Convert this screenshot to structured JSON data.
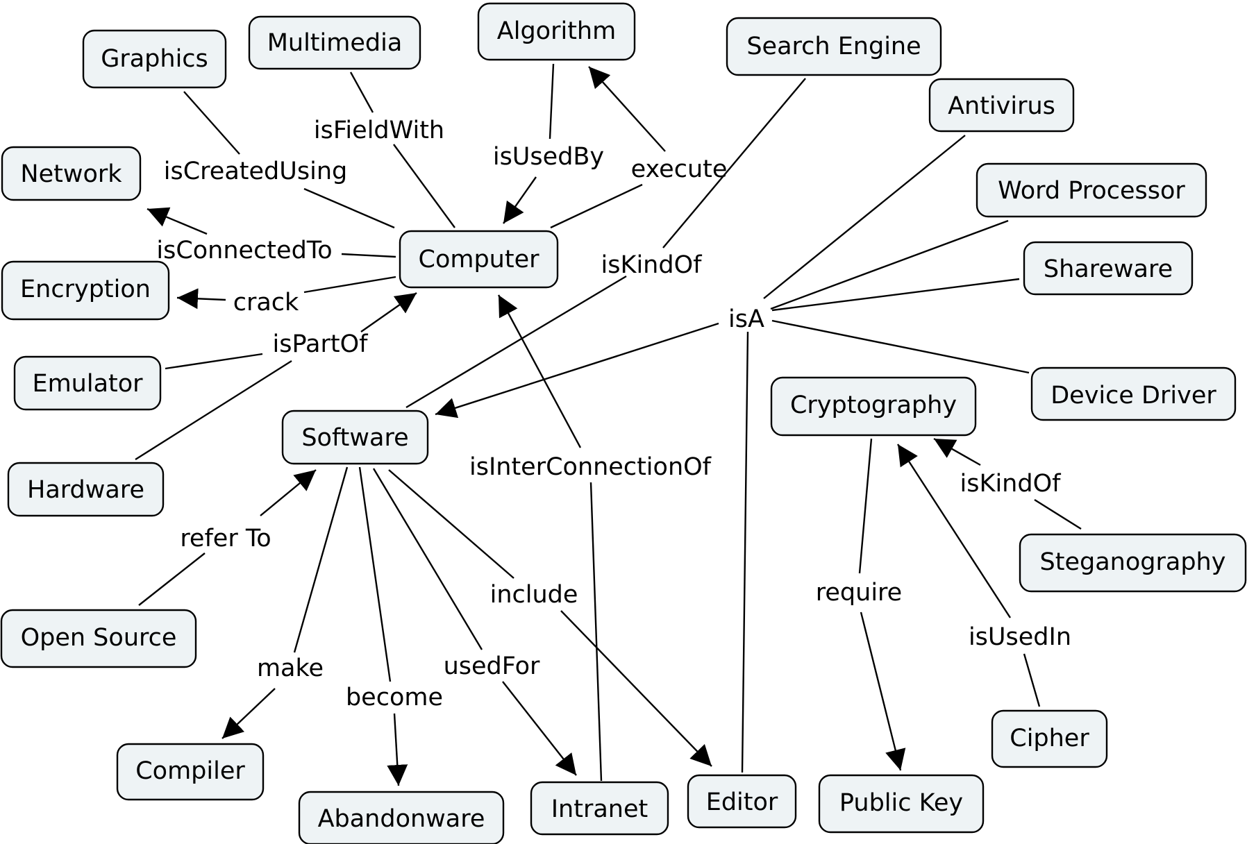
{
  "concepts": {
    "computer": "Computer",
    "graphics": "Graphics",
    "multimedia": "Multimedia",
    "algorithm": "Algorithm",
    "search_engine": "Search Engine",
    "antivirus": "Antivirus",
    "word_processor": "Word Processor",
    "shareware": "Shareware",
    "device_driver": "Device Driver",
    "network": "Network",
    "encryption": "Encryption",
    "emulator": "Emulator",
    "hardware": "Hardware",
    "software": "Software",
    "cryptography": "Cryptography",
    "steganography": "Steganography",
    "open_source": "Open Source",
    "compiler": "Compiler",
    "abandonware": "Abandonware",
    "intranet": "Intranet",
    "editor": "Editor",
    "public_key": "Public Key",
    "cipher": "Cipher"
  },
  "links": {
    "isFieldWith": "isFieldWith",
    "isCreatedUsing": "isCreatedUsing",
    "isUsedBy": "isUsedBy",
    "execute": "execute",
    "isConnectedTo": "isConnectedTo",
    "crack": "crack",
    "isPartOf": "isPartOf",
    "isKindOf_software": "isKindOf",
    "isA": "isA",
    "isInterConnectionOf": "isInterConnectionOf",
    "isKindOf_stego": "isKindOf",
    "refer_to": "refer To",
    "include": "include",
    "require": "require",
    "isUsedIn": "isUsedIn",
    "make": "make",
    "usedFor": "usedFor",
    "become": "become"
  },
  "colors": {
    "node_fill": "#eef3f5",
    "stroke": "#000000"
  }
}
